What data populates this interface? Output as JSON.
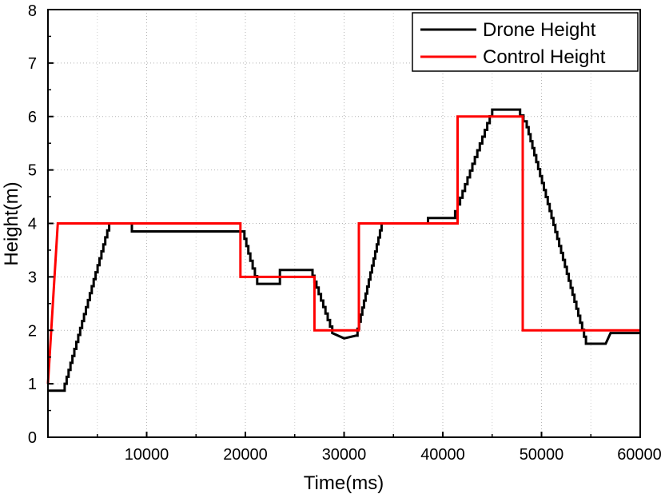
{
  "chart_data": {
    "type": "line",
    "title": "",
    "xlabel": "Time(ms)",
    "ylabel": "Height(m)",
    "xlim": [
      0,
      60000
    ],
    "ylim": [
      0,
      8
    ],
    "x_ticks": [
      10000,
      20000,
      30000,
      40000,
      50000,
      60000
    ],
    "x_tick_labels": [
      "10000",
      "20000",
      "30000",
      "40000",
      "50000",
      "60000"
    ],
    "y_ticks": [
      0,
      1,
      2,
      3,
      4,
      5,
      6,
      7,
      8
    ],
    "y_tick_labels": [
      "0",
      "1",
      "2",
      "3",
      "4",
      "5",
      "6",
      "7",
      "8"
    ],
    "grid": true,
    "legend_position": "top-right",
    "series": [
      {
        "name": "Drone Height",
        "color": "#000000",
        "style": "staircase",
        "points": [
          [
            0,
            0.87
          ],
          [
            1500,
            0.87
          ],
          [
            6200,
            4.0
          ],
          [
            8500,
            4.0
          ],
          [
            8500,
            3.85
          ],
          [
            19700,
            3.85
          ],
          [
            20500,
            3.3
          ],
          [
            21200,
            2.87
          ],
          [
            23500,
            2.87
          ],
          [
            23500,
            3.13
          ],
          [
            26600,
            3.13
          ],
          [
            27200,
            2.8
          ],
          [
            28800,
            1.95
          ],
          [
            30000,
            1.85
          ],
          [
            31200,
            1.9
          ],
          [
            33800,
            4.0
          ],
          [
            38500,
            4.0
          ],
          [
            38500,
            4.1
          ],
          [
            41000,
            4.1
          ],
          [
            45000,
            6.13
          ],
          [
            47500,
            6.13
          ],
          [
            48500,
            5.8
          ],
          [
            54500,
            1.75
          ],
          [
            56500,
            1.75
          ],
          [
            57000,
            1.95
          ],
          [
            60000,
            1.95
          ]
        ]
      },
      {
        "name": "Control Height",
        "color": "#ff0000",
        "style": "step",
        "points": [
          [
            0,
            1.0
          ],
          [
            1000,
            4.0
          ],
          [
            19500,
            4.0
          ],
          [
            19500,
            3.0
          ],
          [
            27000,
            3.0
          ],
          [
            27000,
            2.0
          ],
          [
            31500,
            2.0
          ],
          [
            31500,
            4.0
          ],
          [
            41500,
            4.0
          ],
          [
            41500,
            6.0
          ],
          [
            48100,
            6.0
          ],
          [
            48100,
            2.0
          ],
          [
            60000,
            2.0
          ]
        ]
      }
    ]
  }
}
